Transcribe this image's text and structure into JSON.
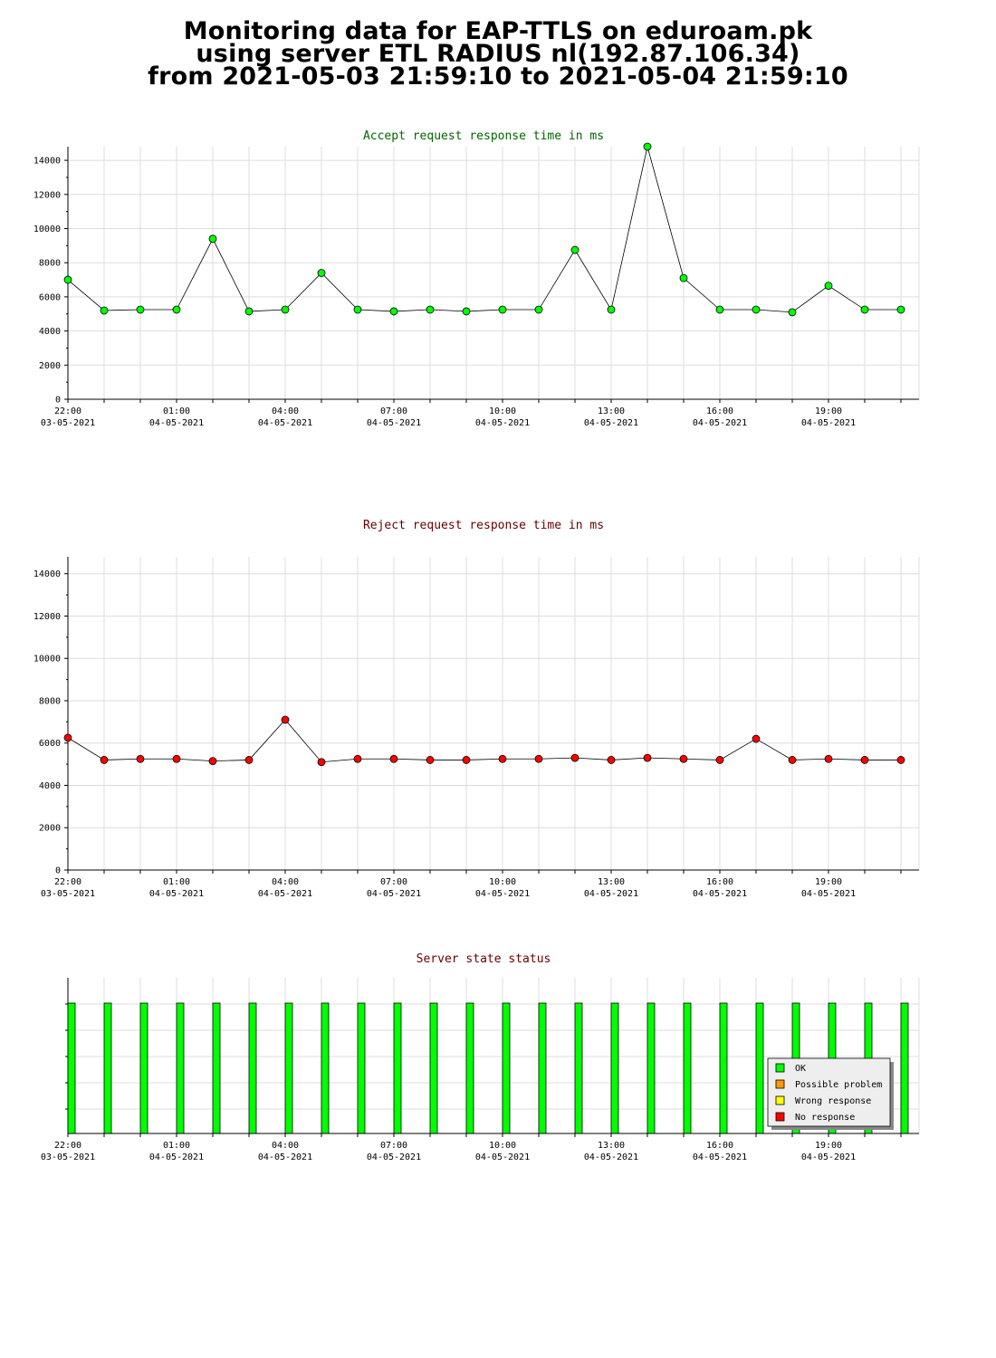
{
  "header": {
    "line1": "Monitoring data for EAP-TTLS on eduroam.pk",
    "line2": "using server ETL RADIUS nl(192.87.106.34)",
    "line3": "from 2021-05-03 21:59:10 to 2021-05-04 21:59:10"
  },
  "colors": {
    "accept": "#00ff00",
    "reject": "#ff0000",
    "accept_title": "#006600",
    "reject_title": "#660000",
    "grid": "#dddddd",
    "ok": "#00ff00",
    "possible_problem": "#ff9900",
    "wrong_response": "#ffff00",
    "no_response": "#ff0000"
  },
  "x_ticks": [
    {
      "time": "22:00",
      "date": "03-05-2021"
    },
    {
      "time": "01:00",
      "date": "04-05-2021"
    },
    {
      "time": "04:00",
      "date": "04-05-2021"
    },
    {
      "time": "07:00",
      "date": "04-05-2021"
    },
    {
      "time": "10:00",
      "date": "04-05-2021"
    },
    {
      "time": "13:00",
      "date": "04-05-2021"
    },
    {
      "time": "16:00",
      "date": "04-05-2021"
    },
    {
      "time": "19:00",
      "date": "04-05-2021"
    }
  ],
  "chart_data": [
    {
      "type": "line",
      "title": "Accept request response time in ms",
      "ylim": [
        0,
        14800
      ],
      "y_ticks": [
        0,
        2000,
        4000,
        6000,
        8000,
        10000,
        12000,
        14000
      ],
      "grid": true,
      "x": [
        "2021-05-03 22:00",
        "2021-05-03 23:00",
        "2021-05-04 00:00",
        "2021-05-04 01:00",
        "2021-05-04 02:00",
        "2021-05-04 03:00",
        "2021-05-04 04:00",
        "2021-05-04 05:00",
        "2021-05-04 06:00",
        "2021-05-04 07:00",
        "2021-05-04 08:00",
        "2021-05-04 09:00",
        "2021-05-04 10:00",
        "2021-05-04 11:00",
        "2021-05-04 12:00",
        "2021-05-04 13:00",
        "2021-05-04 14:00",
        "2021-05-04 15:00",
        "2021-05-04 16:00",
        "2021-05-04 17:00",
        "2021-05-04 18:00",
        "2021-05-04 19:00",
        "2021-05-04 20:00",
        "2021-05-04 21:00"
      ],
      "values": [
        7000,
        5200,
        5250,
        5250,
        9400,
        5150,
        5250,
        7400,
        5250,
        5150,
        5250,
        5150,
        5250,
        5250,
        8750,
        5250,
        14800,
        7100,
        5250,
        5250,
        5100,
        6650,
        5250,
        5250
      ]
    },
    {
      "type": "line",
      "title": "Reject request response time in ms",
      "ylim": [
        0,
        14800
      ],
      "y_ticks": [
        0,
        2000,
        4000,
        6000,
        8000,
        10000,
        12000,
        14000
      ],
      "grid": true,
      "x": [
        "2021-05-03 22:00",
        "2021-05-03 23:00",
        "2021-05-04 00:00",
        "2021-05-04 01:00",
        "2021-05-04 02:00",
        "2021-05-04 03:00",
        "2021-05-04 04:00",
        "2021-05-04 05:00",
        "2021-05-04 06:00",
        "2021-05-04 07:00",
        "2021-05-04 08:00",
        "2021-05-04 09:00",
        "2021-05-04 10:00",
        "2021-05-04 11:00",
        "2021-05-04 12:00",
        "2021-05-04 13:00",
        "2021-05-04 14:00",
        "2021-05-04 15:00",
        "2021-05-04 16:00",
        "2021-05-04 17:00",
        "2021-05-04 18:00",
        "2021-05-04 19:00",
        "2021-05-04 20:00",
        "2021-05-04 21:00"
      ],
      "values": [
        6250,
        5200,
        5250,
        5250,
        5150,
        5200,
        7100,
        5100,
        5250,
        5250,
        5200,
        5200,
        5250,
        5250,
        5300,
        5200,
        5300,
        5250,
        5200,
        6200,
        5200,
        5250,
        5200,
        5200
      ]
    },
    {
      "type": "bar",
      "title": "Server state status",
      "grid": true,
      "x": [
        "2021-05-03 22:00",
        "2021-05-03 23:00",
        "2021-05-04 00:00",
        "2021-05-04 01:00",
        "2021-05-04 02:00",
        "2021-05-04 03:00",
        "2021-05-04 04:00",
        "2021-05-04 05:00",
        "2021-05-04 06:00",
        "2021-05-04 07:00",
        "2021-05-04 08:00",
        "2021-05-04 09:00",
        "2021-05-04 10:00",
        "2021-05-04 11:00",
        "2021-05-04 12:00",
        "2021-05-04 13:00",
        "2021-05-04 14:00",
        "2021-05-04 15:00",
        "2021-05-04 16:00",
        "2021-05-04 17:00",
        "2021-05-04 18:00",
        "2021-05-04 19:00",
        "2021-05-04 20:00",
        "2021-05-04 21:00"
      ],
      "states": [
        "OK",
        "OK",
        "OK",
        "OK",
        "OK",
        "OK",
        "OK",
        "OK",
        "OK",
        "OK",
        "OK",
        "OK",
        "OK",
        "OK",
        "OK",
        "OK",
        "OK",
        "OK",
        "OK",
        "OK",
        "OK",
        "OK",
        "OK",
        "OK"
      ],
      "legend": [
        "OK",
        "Possible problem",
        "Wrong response",
        "No response"
      ],
      "legend_position": "bottom-right"
    }
  ]
}
